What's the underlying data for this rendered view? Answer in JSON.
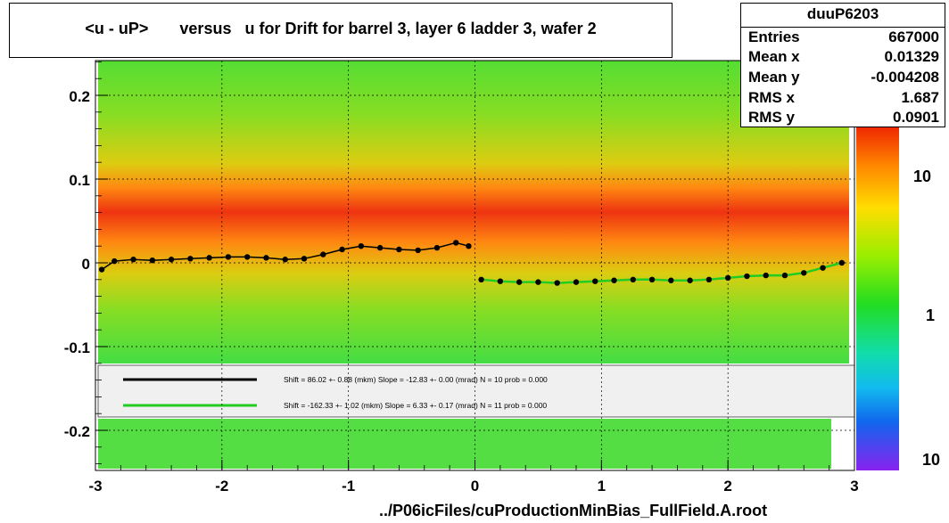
{
  "title": "<u - uP>       versus   u for Drift for barrel 3, layer 6 ladder 3, wafer 2",
  "stats": {
    "name": "duuP6203",
    "rows": [
      {
        "label": "Entries",
        "value": "667000"
      },
      {
        "label": "Mean x",
        "value": "0.01329"
      },
      {
        "label": "Mean y",
        "value": "-0.004208"
      },
      {
        "label": "RMS x",
        "value": "1.687"
      },
      {
        "label": "RMS y",
        "value": "0.0901"
      }
    ]
  },
  "footer_label": "../P06icFiles/cuProductionMinBias_FullField.A.root",
  "legend": {
    "entries": [
      {
        "text": "Shift =    86.02 +- 0.88 (mkm) Slope =   -12.83 +- 0.00 (mrad)  N = 10 prob = 0.000",
        "color": "#000000"
      },
      {
        "text": "Shift =  -162.33 +- 1.02 (mkm) Slope =     6.33 +- 0.17 (mrad)  N = 11 prob = 0.000",
        "color": "#22cc22"
      }
    ]
  },
  "chart_data": {
    "type": "heatmap",
    "xlim": [
      -3,
      3
    ],
    "ylim": [
      -0.25,
      0.25
    ],
    "x_ticks": [
      "-3",
      "-2",
      "-1",
      "0",
      "1",
      "2",
      "3"
    ],
    "y_ticks": [
      "-0.2",
      "-0.1",
      "0",
      "0.1",
      "0.2"
    ],
    "colorbar_ticks": [
      "10",
      "1",
      "10"
    ],
    "grid": true,
    "series": [
      {
        "color": "#000000",
        "x": [
          -2.95,
          -2.85,
          -2.7,
          -2.55,
          -2.4,
          -2.25,
          -2.1,
          -1.95,
          -1.8,
          -1.65,
          -1.5,
          -1.35,
          -1.2,
          -1.05,
          -0.9,
          -0.75,
          -0.6,
          -0.45,
          -0.3,
          -0.15,
          -0.05
        ],
        "y": [
          -0.008,
          0.002,
          0.004,
          0.003,
          0.004,
          0.005,
          0.006,
          0.007,
          0.007,
          0.006,
          0.004,
          0.005,
          0.01,
          0.016,
          0.02,
          0.018,
          0.016,
          0.015,
          0.018,
          0.024,
          0.02
        ]
      },
      {
        "color": "#22cc22",
        "x": [
          0.05,
          0.2,
          0.35,
          0.5,
          0.65,
          0.8,
          0.95,
          1.1,
          1.25,
          1.4,
          1.55,
          1.7,
          1.85,
          2.0,
          2.15,
          2.3,
          2.45,
          2.6,
          2.75,
          2.9
        ],
        "y": [
          -0.02,
          -0.022,
          -0.023,
          -0.023,
          -0.024,
          -0.023,
          -0.022,
          -0.021,
          -0.02,
          -0.02,
          -0.021,
          -0.021,
          -0.02,
          -0.018,
          -0.016,
          -0.015,
          -0.015,
          -0.012,
          -0.006,
          0.0
        ]
      }
    ]
  }
}
